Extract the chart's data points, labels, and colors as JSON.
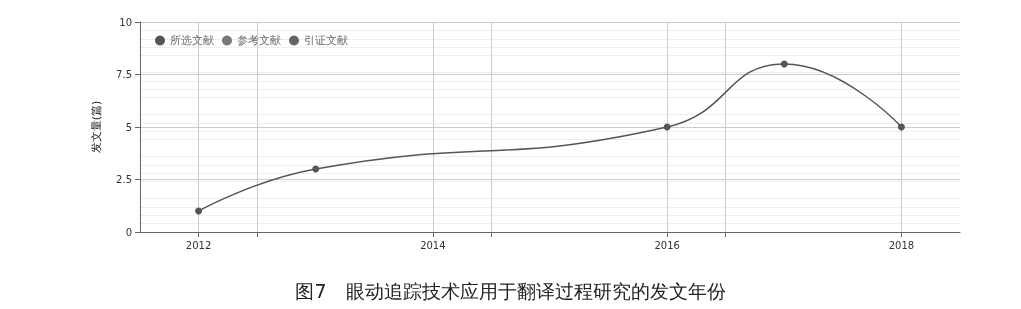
{
  "chart_data": {
    "type": "line",
    "title": "图7　眼动追踪技术应用于翻译过程研究的发文年份",
    "ylabel": "发文量(篇)",
    "x": [
      2012,
      2013,
      2016,
      2017,
      2018
    ],
    "series": [
      {
        "name": "所选文献",
        "color": "#555555",
        "values": [
          1,
          3,
          5,
          8,
          5
        ]
      },
      {
        "name": "参考文献",
        "color": "#777777",
        "values": [
          null,
          null,
          null,
          null,
          null
        ]
      },
      {
        "name": "引证文献",
        "color": "#666666",
        "values": [
          null,
          null,
          null,
          null,
          null
        ]
      }
    ],
    "xlim": [
      2011.5,
      2018.5
    ],
    "xticks": [
      2012,
      {
        "value": 2012.5,
        "label": null
      },
      2014,
      {
        "value": 2014.5,
        "label": null
      },
      2016,
      {
        "value": 2016.5,
        "label": null
      },
      2018
    ],
    "ylim": [
      0,
      10
    ],
    "yticks": [
      0,
      2.5,
      5,
      7.5,
      10
    ],
    "grid": true,
    "legend": "top left",
    "marker": "circle",
    "line_style": "solid"
  }
}
